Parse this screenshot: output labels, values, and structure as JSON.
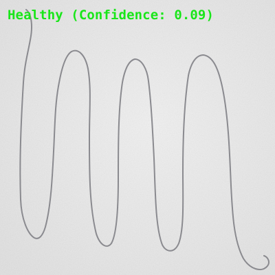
{
  "image": {
    "content": "pencil-drawn meander / sine-wave spiral on white paper",
    "colors": {
      "paper": "#ebebeb",
      "pencil": "#8a8a8f",
      "label_text": "#19e619"
    }
  },
  "overlay": {
    "label": "Healthy (Confidence: 0.09)"
  }
}
